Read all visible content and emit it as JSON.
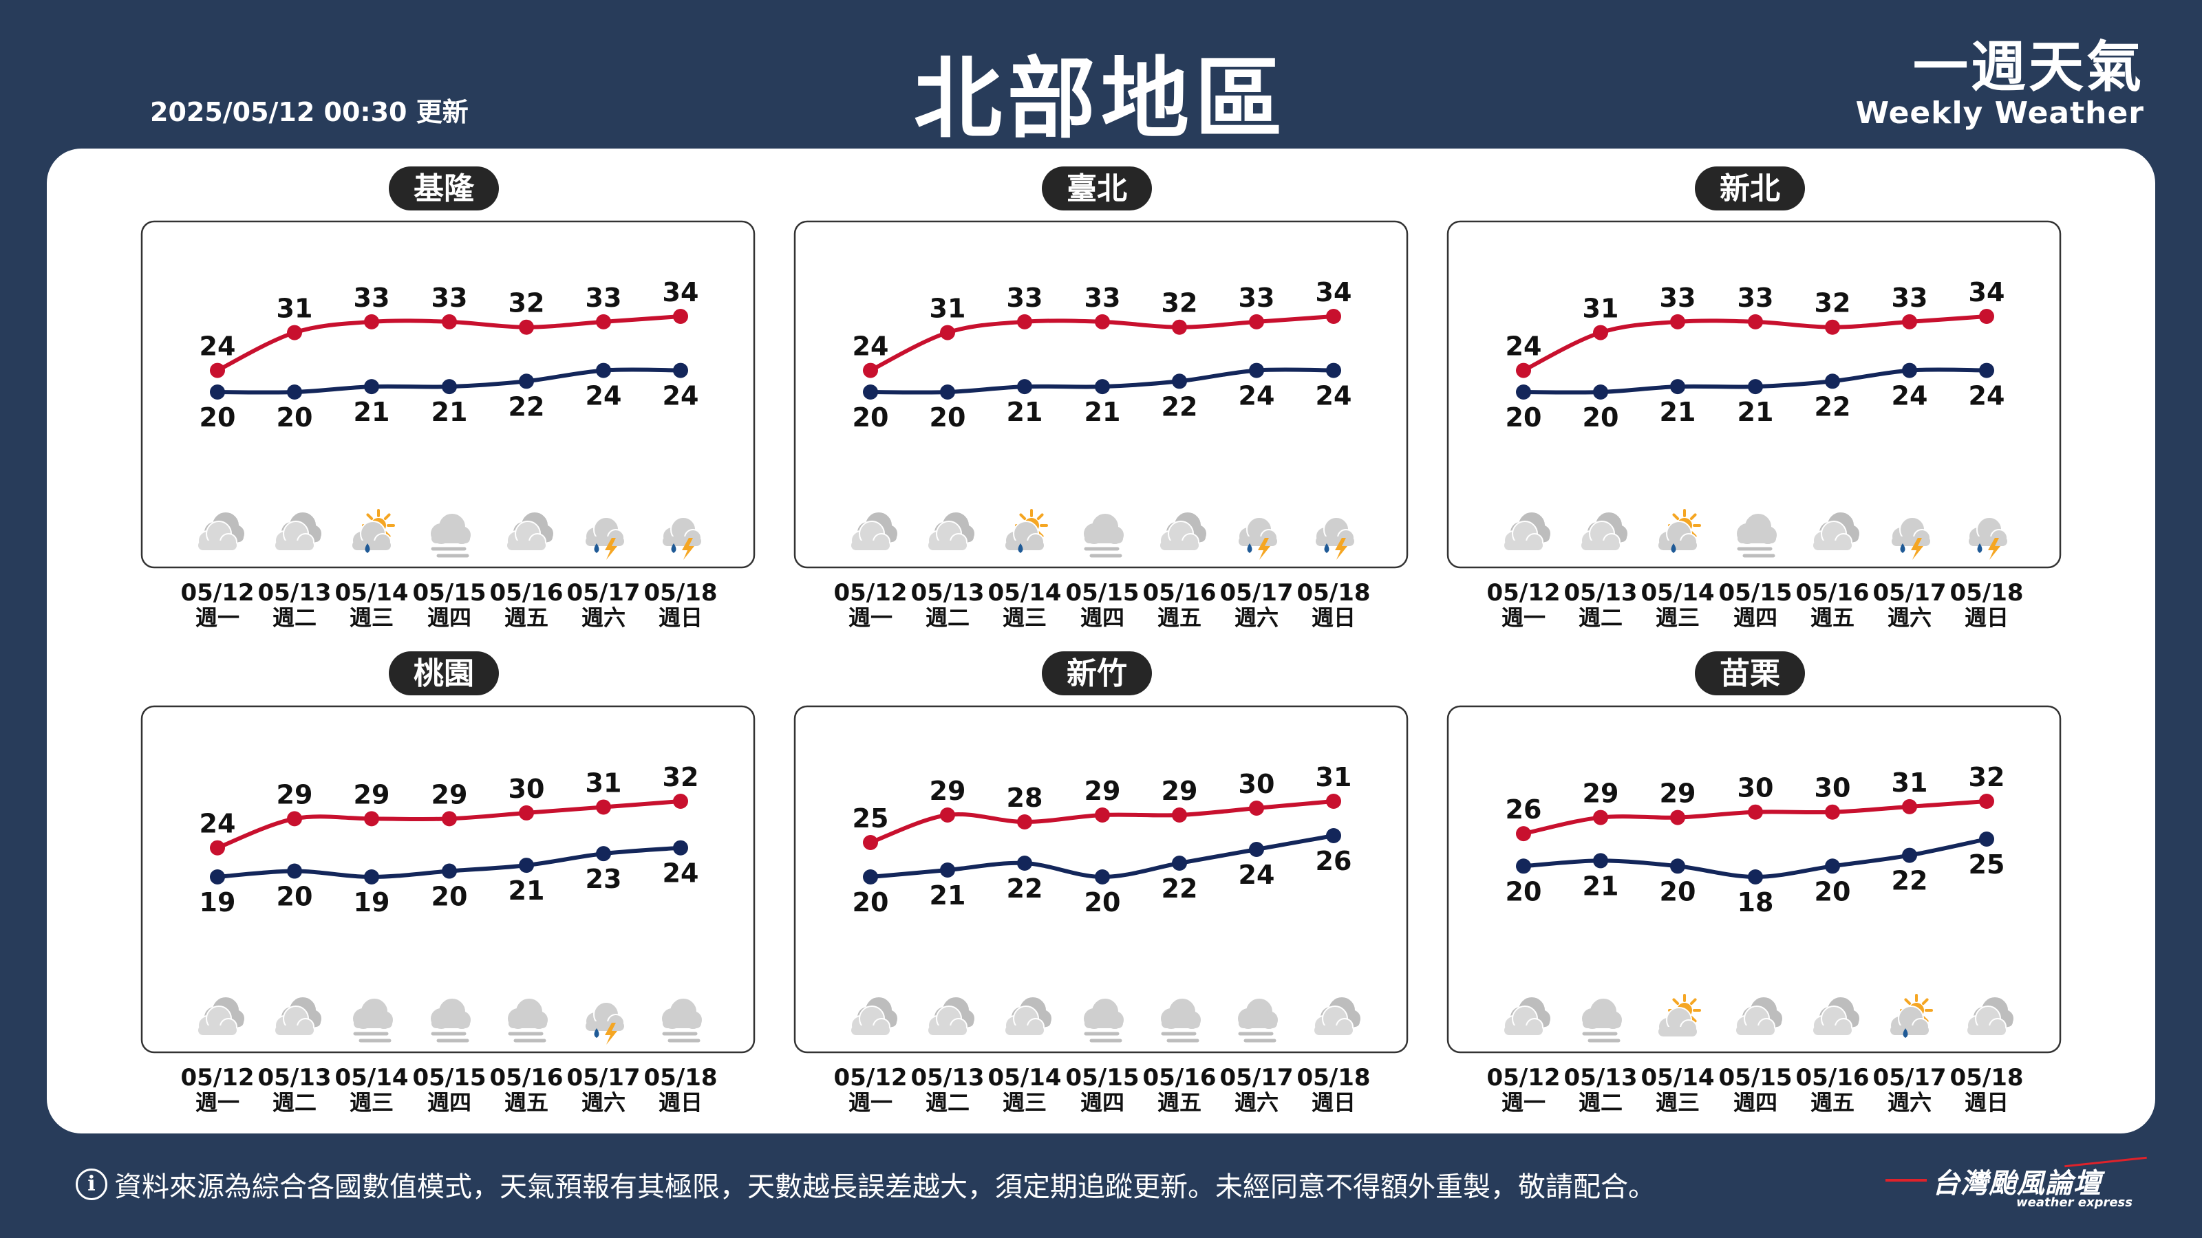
{
  "header": {
    "timestamp": "2025/05/12 00:30 更新",
    "title": "北部地區",
    "brand_cn": "一週天氣",
    "brand_en": "Weekly Weather"
  },
  "footer": {
    "info_symbol": "i",
    "disclaimer": "資料來源為綜合各國數值模式，天氣預報有其極限，天數越長誤差越大，須定期追蹤更新。未經同意不得額外重製，敬請配合。",
    "logo_name": "台灣颱風論壇",
    "logo_sub": "weather express"
  },
  "colors": {
    "background": "#283c5a",
    "high_line": "#c8102e",
    "low_line": "#13265a",
    "label_pill": "#262626"
  },
  "chart_data": [
    {
      "type": "line",
      "title": "基隆",
      "categories": [
        "05/12",
        "05/13",
        "05/14",
        "05/15",
        "05/16",
        "05/17",
        "05/18"
      ],
      "weekdays": [
        "週一",
        "週二",
        "週三",
        "週四",
        "週五",
        "週六",
        "週日"
      ],
      "series": [
        {
          "name": "high",
          "values": [
            24,
            31,
            33,
            33,
            32,
            33,
            34
          ]
        },
        {
          "name": "low",
          "values": [
            20,
            20,
            21,
            21,
            22,
            24,
            24
          ]
        }
      ],
      "icons": [
        "cloudy-icon",
        "cloudy-icon",
        "partly-sunny-rain-icon",
        "fog-icon",
        "cloudy-icon",
        "thunderstorm-icon",
        "thunderstorm-icon"
      ]
    },
    {
      "type": "line",
      "title": "臺北",
      "categories": [
        "05/12",
        "05/13",
        "05/14",
        "05/15",
        "05/16",
        "05/17",
        "05/18"
      ],
      "weekdays": [
        "週一",
        "週二",
        "週三",
        "週四",
        "週五",
        "週六",
        "週日"
      ],
      "series": [
        {
          "name": "high",
          "values": [
            24,
            31,
            33,
            33,
            32,
            33,
            34
          ]
        },
        {
          "name": "low",
          "values": [
            20,
            20,
            21,
            21,
            22,
            24,
            24
          ]
        }
      ],
      "icons": [
        "cloudy-icon",
        "cloudy-icon",
        "partly-sunny-rain-icon",
        "fog-icon",
        "cloudy-icon",
        "thunderstorm-icon",
        "thunderstorm-icon"
      ]
    },
    {
      "type": "line",
      "title": "新北",
      "categories": [
        "05/12",
        "05/13",
        "05/14",
        "05/15",
        "05/16",
        "05/17",
        "05/18"
      ],
      "weekdays": [
        "週一",
        "週二",
        "週三",
        "週四",
        "週五",
        "週六",
        "週日"
      ],
      "series": [
        {
          "name": "high",
          "values": [
            24,
            31,
            33,
            33,
            32,
            33,
            34
          ]
        },
        {
          "name": "low",
          "values": [
            20,
            20,
            21,
            21,
            22,
            24,
            24
          ]
        }
      ],
      "icons": [
        "cloudy-icon",
        "cloudy-icon",
        "partly-sunny-rain-icon",
        "fog-icon",
        "cloudy-icon",
        "thunderstorm-icon",
        "thunderstorm-icon"
      ]
    },
    {
      "type": "line",
      "title": "桃園",
      "categories": [
        "05/12",
        "05/13",
        "05/14",
        "05/15",
        "05/16",
        "05/17",
        "05/18"
      ],
      "weekdays": [
        "週一",
        "週二",
        "週三",
        "週四",
        "週五",
        "週六",
        "週日"
      ],
      "series": [
        {
          "name": "high",
          "values": [
            24,
            29,
            29,
            29,
            30,
            31,
            32
          ]
        },
        {
          "name": "low",
          "values": [
            19,
            20,
            19,
            20,
            21,
            23,
            24
          ]
        }
      ],
      "icons": [
        "cloudy-icon",
        "cloudy-icon",
        "fog-icon",
        "fog-icon",
        "fog-icon",
        "thunderstorm-icon",
        "fog-icon"
      ]
    },
    {
      "type": "line",
      "title": "新竹",
      "categories": [
        "05/12",
        "05/13",
        "05/14",
        "05/15",
        "05/16",
        "05/17",
        "05/18"
      ],
      "weekdays": [
        "週一",
        "週二",
        "週三",
        "週四",
        "週五",
        "週六",
        "週日"
      ],
      "series": [
        {
          "name": "high",
          "values": [
            25,
            29,
            28,
            29,
            29,
            30,
            31
          ]
        },
        {
          "name": "low",
          "values": [
            20,
            21,
            22,
            20,
            22,
            24,
            26
          ]
        }
      ],
      "icons": [
        "cloudy-icon",
        "cloudy-icon",
        "cloudy-icon",
        "fog-icon",
        "fog-icon",
        "fog-icon",
        "cloudy-icon"
      ]
    },
    {
      "type": "line",
      "title": "苗栗",
      "categories": [
        "05/12",
        "05/13",
        "05/14",
        "05/15",
        "05/16",
        "05/17",
        "05/18"
      ],
      "weekdays": [
        "週一",
        "週二",
        "週三",
        "週四",
        "週五",
        "週六",
        "週日"
      ],
      "series": [
        {
          "name": "high",
          "values": [
            26,
            29,
            29,
            30,
            30,
            31,
            32
          ]
        },
        {
          "name": "low",
          "values": [
            20,
            21,
            20,
            18,
            20,
            22,
            25
          ]
        }
      ],
      "icons": [
        "cloudy-icon",
        "fog-icon",
        "partly-sunny-icon",
        "cloudy-icon",
        "cloudy-icon",
        "partly-sunny-rain-icon",
        "cloudy-icon"
      ]
    }
  ]
}
